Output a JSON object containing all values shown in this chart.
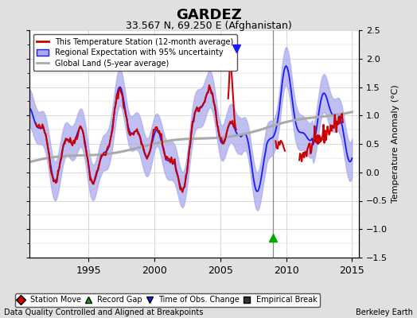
{
  "title": "GARDEZ",
  "subtitle": "33.567 N, 69.250 E (Afghanistan)",
  "ylabel": "Temperature Anomaly (°C)",
  "xlabel_left": "Data Quality Controlled and Aligned at Breakpoints",
  "xlabel_right": "Berkeley Earth",
  "ylim": [
    -1.5,
    2.5
  ],
  "xlim": [
    1990.5,
    2015.5
  ],
  "xticks": [
    1995,
    2000,
    2005,
    2010,
    2015
  ],
  "yticks": [
    -1.5,
    -1.0,
    -0.5,
    0.0,
    0.5,
    1.0,
    1.5,
    2.0,
    2.5
  ],
  "background_color": "#e0e0e0",
  "plot_bg_color": "#ffffff",
  "grid_color": "#cccccc",
  "blue_line_color": "#1a1aff",
  "blue_fill_color": "#aaaaee",
  "red_line_color": "#cc0000",
  "gray_line_color": "#aaaaaa",
  "vertical_line_x": 2009.0,
  "vertical_line_color": "#888888",
  "record_gap_x": 2009.0,
  "record_gap_y": -1.15,
  "obs_change_x": 2006.25,
  "obs_change_y": 2.18,
  "station_move_x": 2012.4,
  "station_move_y": 0.58,
  "legend_entries": [
    {
      "label": "This Temperature Station (12-month average)",
      "color": "#cc0000",
      "lw": 2
    },
    {
      "label": "Regional Expectation with 95% uncertainty",
      "color": "#1a1aff",
      "fill": "#aaaaee"
    },
    {
      "label": "Global Land (5-year average)",
      "color": "#aaaaaa",
      "lw": 2
    }
  ],
  "bottom_legend": [
    {
      "label": "Station Move",
      "color": "#cc0000",
      "marker": "D"
    },
    {
      "label": "Record Gap",
      "color": "#00aa00",
      "marker": "^"
    },
    {
      "label": "Time of Obs. Change",
      "color": "#1a1aff",
      "marker": "v"
    },
    {
      "label": "Empirical Break",
      "color": "#333333",
      "marker": "s"
    }
  ]
}
